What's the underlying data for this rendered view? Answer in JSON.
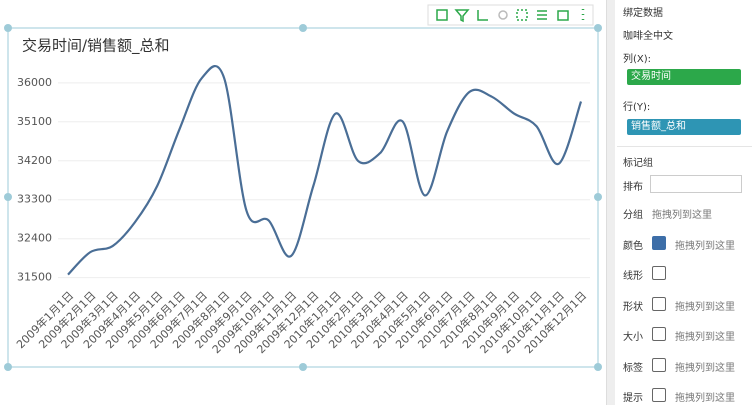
{
  "chart_data": {
    "type": "line",
    "title": "交易时间/销售额_总和",
    "categories": [
      "2009年1月1日",
      "2009年2月1日",
      "2009年3月1日",
      "2009年4月1日",
      "2009年5月1日",
      "2009年6月1日",
      "2009年7月1日",
      "2009年8月1日",
      "2009年9月1日",
      "2009年10月1日",
      "2009年11月1日",
      "2009年12月1日",
      "2010年1月1日",
      "2010年2月1日",
      "2010年3月1日",
      "2010年4月1日",
      "2010年5月1日",
      "2010年6月1日",
      "2010年7月1日",
      "2010年8月1日",
      "2010年9月1日",
      "2010年10月1日",
      "2010年11月1日",
      "2010年12月1日"
    ],
    "values": [
      31570,
      32090,
      32230,
      32780,
      33620,
      34930,
      36110,
      36110,
      33050,
      32820,
      32000,
      33620,
      35290,
      34200,
      34380,
      35110,
      33400,
      34880,
      35790,
      35680,
      35290,
      35000,
      34130,
      35570
    ],
    "color": "#4a6e96",
    "ylim": [
      31400,
      36250
    ],
    "yticks": [
      31500,
      32400,
      33300,
      34200,
      35100,
      36000
    ],
    "grid": true
  },
  "panel": {
    "title": "绑定数据",
    "dataset": "咖啡全中文",
    "columns_label": "列(X):",
    "columns_field": "交易时间",
    "rows_label": "行(Y):",
    "rows_field": "销售额_总和",
    "marks_title": "标记组",
    "layout_label": "排布",
    "group": {
      "label": "分组",
      "placeholder": "拖拽列到这里"
    },
    "marks": [
      {
        "label": "颜色",
        "placeholder": "拖拽列到这里"
      },
      {
        "label": "线形"
      },
      {
        "label": "形状",
        "placeholder": "拖拽列到这里"
      },
      {
        "label": "大小",
        "placeholder": "拖拽列到这里"
      },
      {
        "label": "标签",
        "placeholder": "拖拽列到这里"
      },
      {
        "label": "提示",
        "placeholder": "拖拽列到这里"
      }
    ]
  }
}
